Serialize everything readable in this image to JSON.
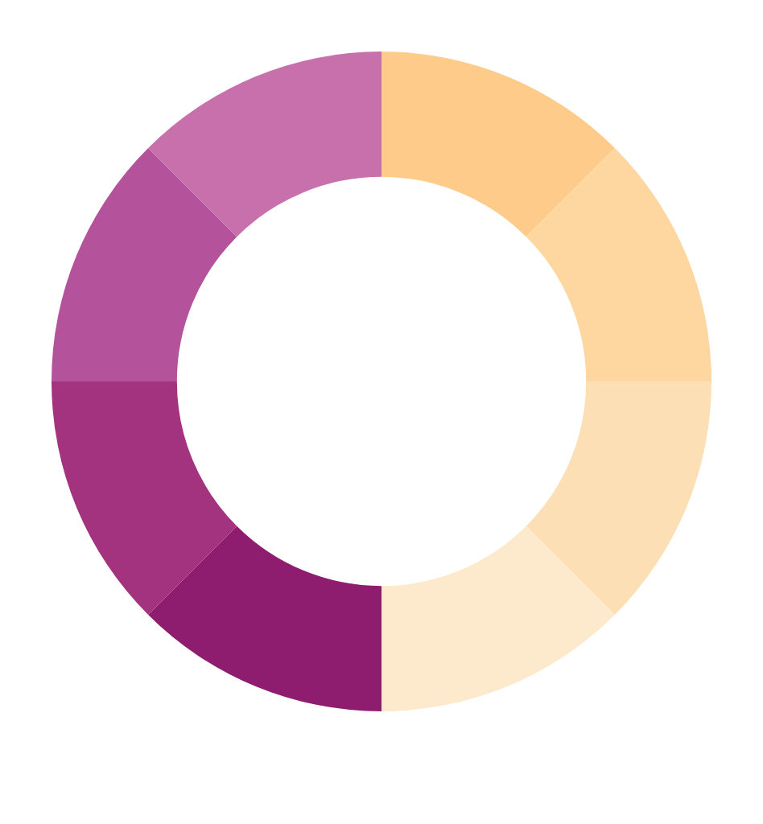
{
  "chart_data": {
    "type": "donut",
    "categories": [
      null,
      null,
      null,
      null,
      null,
      null,
      null,
      null
    ],
    "values": [
      12.5,
      12.5,
      12.5,
      12.5,
      12.5,
      12.5,
      12.5,
      12.5
    ],
    "colors": [
      "#fecb8b",
      "#fdd6a0",
      "#fddfb5",
      "#fde9cc",
      "#8e1d6f",
      "#a3327f",
      "#b4529b",
      "#c770ac"
    ]
  }
}
